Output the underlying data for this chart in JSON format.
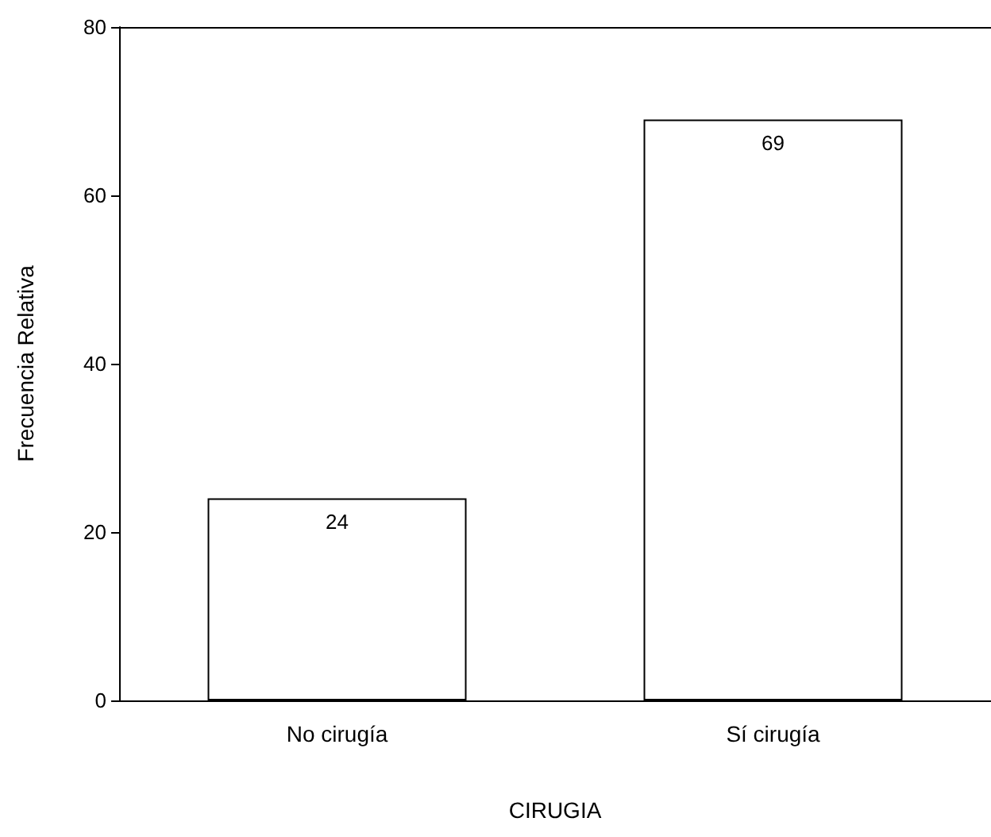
{
  "chart_data": {
    "type": "bar",
    "xlabel": "CIRUGIA",
    "ylabel": "Frecuencia Relativa",
    "categories": [
      "No cirugía",
      "Sí cirugía"
    ],
    "values": [
      24,
      69
    ],
    "color": "#ffffff",
    "ylim": [
      0,
      80
    ],
    "yticks": [
      0,
      20,
      40,
      60,
      80
    ],
    "grid": false,
    "data_labels": true
  }
}
